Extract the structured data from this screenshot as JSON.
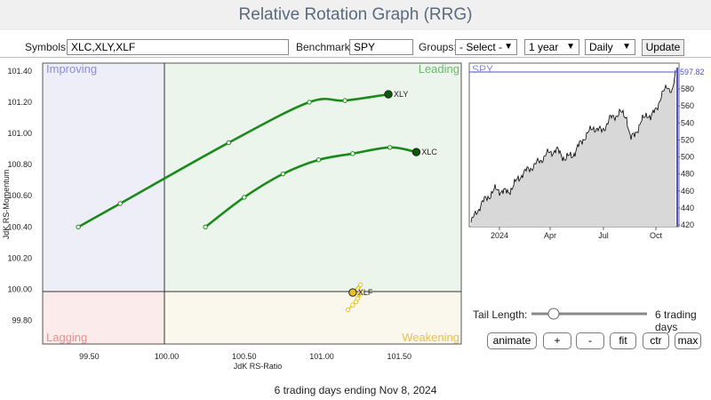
{
  "title": "Relative Rotation Graph (RRG)",
  "toolbar": {
    "symbols_label": "Symbols:",
    "symbols_value": "XLC,XLY,XLF",
    "benchmark_label": "Benchmark:",
    "benchmark_value": "SPY",
    "groups_label": "Groups:",
    "groups_value": "- Select -",
    "period_value": "1 year",
    "frequency_value": "Daily",
    "update_label": "Update"
  },
  "rrg": {
    "quadrants": {
      "improving": "Improving",
      "leading": "Leading",
      "lagging": "Lagging",
      "weakening": "Weakening"
    },
    "colors": {
      "improving_bg": "#eeeef8",
      "leading_bg": "#ecf5ec",
      "lagging_bg": "#fbeceb",
      "weakening_bg": "#faf8ec",
      "tail_green": "#1a8a1a",
      "tail_yellow": "#e8c020"
    },
    "x_axis_label": "JdK RS-Ratio",
    "y_axis_label": "JdK RS-Momentum",
    "x_ticks": [
      "99.50",
      "100.00",
      "100.50",
      "101.00",
      "101.50"
    ],
    "y_ticks": [
      "101.40",
      "101.20",
      "101.00",
      "100.80",
      "100.60",
      "100.40",
      "100.20",
      "100.00",
      "99.80"
    ],
    "xlim": [
      99.2,
      101.9
    ],
    "ylim": [
      99.65,
      101.45
    ],
    "tails": [
      {
        "symbol": "XLY",
        "points": [
          [
            99.43,
            100.4
          ],
          [
            99.7,
            100.55
          ],
          [
            100.4,
            100.94
          ],
          [
            100.92,
            101.2
          ],
          [
            101.15,
            101.21
          ],
          [
            101.43,
            101.25
          ]
        ]
      },
      {
        "symbol": "XLC",
        "points": [
          [
            100.25,
            100.4
          ],
          [
            100.5,
            100.59
          ],
          [
            100.75,
            100.74
          ],
          [
            100.98,
            100.83
          ],
          [
            101.2,
            100.87
          ],
          [
            101.44,
            100.91
          ],
          [
            101.61,
            100.88
          ]
        ]
      },
      {
        "symbol": "XLF",
        "points": [
          [
            101.17,
            99.87
          ],
          [
            101.2,
            99.9
          ],
          [
            101.23,
            99.94
          ],
          [
            101.26,
            99.98
          ],
          [
            101.22,
            99.92
          ],
          [
            101.25,
            100.03
          ],
          [
            101.2,
            99.98
          ]
        ]
      }
    ]
  },
  "benchmark_chart": {
    "label": "SPY",
    "last_value_label": "597.82",
    "y_ticks": [
      "580",
      "560",
      "540",
      "520",
      "500",
      "480",
      "460",
      "440",
      "420"
    ],
    "x_ticks": [
      "2024",
      "Apr",
      "Jul",
      "Oct"
    ],
    "colors": {
      "fill": "#d8d8d8",
      "line": "#000000",
      "marker": "#5050d0"
    }
  },
  "tail_length": {
    "label": "Tail Length:",
    "value": "6 trading days"
  },
  "buttons": {
    "animate": "animate",
    "plus": "+",
    "minus": "-",
    "fit": "fit",
    "ctr": "ctr",
    "max": "max"
  },
  "footer": "6 trading days ending Nov 8, 2024"
}
